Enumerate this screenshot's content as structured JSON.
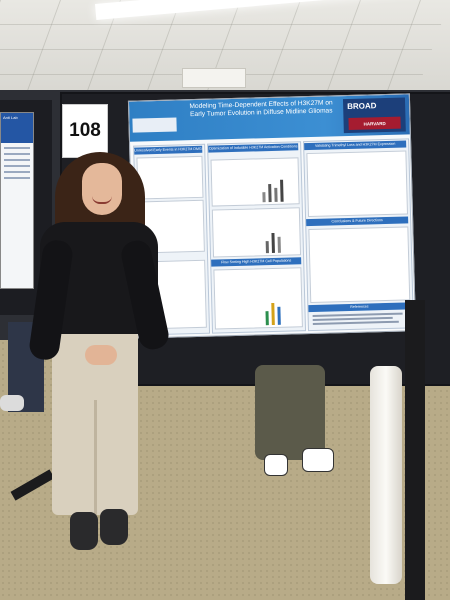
{
  "scene": {
    "booth_number": "108"
  },
  "left_poster": {
    "title": "Anti Lab"
  },
  "poster": {
    "title": "Modeling Time-Dependent Effects of H3K27M on Early Tumor Evolution in Diffuse Midline Gliomas",
    "institution_broad": "BROAD",
    "institution_harvard": "HARVARD",
    "sections": [
      "Unresolved Early Events in H3K27M DMGs",
      "Optimization of Inducible H3K27M Activation Conditions",
      "Validating Trimethyl Loss and H3K27M Expression",
      "Conclusions & Future Directions",
      "Flow Sorting High H3K27M Cell Populations",
      "References"
    ]
  }
}
